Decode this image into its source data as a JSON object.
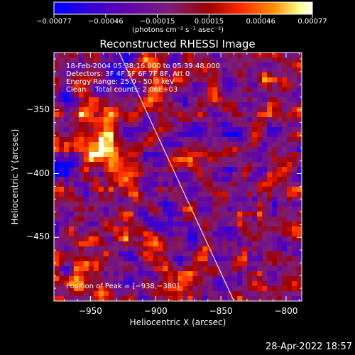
{
  "chart_data": {
    "type": "heatmap",
    "title": "Reconstructed RHESSI Image",
    "xlabel": "Heliocentric X (arcsec)",
    "ylabel": "Heliocentric Y (arcsec)",
    "xlim": [
      -978,
      -788
    ],
    "ylim": [
      -500,
      -305
    ],
    "x_ticks": [
      -950,
      -900,
      -850,
      -800
    ],
    "y_ticks": [
      -450,
      -400,
      -350
    ],
    "x_tick_labels": [
      "−950",
      "−900",
      "−850",
      "−800"
    ],
    "y_tick_labels": [
      "−450",
      "−400",
      "−350"
    ],
    "colorbar": {
      "range": [
        -0.00077,
        0.00077
      ],
      "tick_labels": [
        "−0.00077",
        "−0.00046",
        "−0.00015",
        "0.00015",
        "0.00046",
        "0.00077"
      ],
      "unit_label": "(photons cm⁻² s⁻¹ asec⁻²)"
    },
    "limb_line": [
      [
        -928,
        -305
      ],
      [
        -840,
        -500
      ]
    ],
    "peak": {
      "x": -938,
      "y": -380
    },
    "hot_spots": [
      {
        "x": -938,
        "y": -380,
        "w": 1.0
      },
      {
        "x": -942,
        "y": -352,
        "w": 0.55
      },
      {
        "x": -920,
        "y": -398,
        "w": 0.45
      },
      {
        "x": -960,
        "y": -365,
        "w": 0.4
      },
      {
        "x": -905,
        "y": -322,
        "w": 0.35
      },
      {
        "x": -895,
        "y": -350,
        "w": 0.35
      },
      {
        "x": -972,
        "y": -455,
        "w": 0.45
      },
      {
        "x": -935,
        "y": -440,
        "w": 0.3
      },
      {
        "x": -900,
        "y": -460,
        "w": 0.3
      },
      {
        "x": -890,
        "y": -420,
        "w": 0.3
      },
      {
        "x": -860,
        "y": -390,
        "w": 0.25
      },
      {
        "x": -820,
        "y": -400,
        "w": 0.3
      },
      {
        "x": -835,
        "y": -470,
        "w": 0.3
      },
      {
        "x": -810,
        "y": -330,
        "w": 0.25
      },
      {
        "x": -950,
        "y": -485,
        "w": 0.3
      },
      {
        "x": -875,
        "y": -480,
        "w": 0.25
      }
    ],
    "annotations": [
      "18-Feb-2004 05:38:16.000 to 05:39:48.000",
      "Detectors: 3F 4F 5F 6F 7F 8F, Att 0",
      "Energy Range: 25.0 - 50.0 keV",
      "Clean    Total counts: 2.06E+03"
    ],
    "peak_label": "Position of Peak = [−938,−380]"
  },
  "footer": {
    "timestamp": "28-Apr-2022 18:57"
  },
  "colors": {
    "background": "#000000",
    "colormap": [
      "#0000ff",
      "#5a00b4",
      "#7d1e78",
      "#a00000",
      "#ff2800",
      "#ff8c00",
      "#ffff8c",
      "#ffffff"
    ]
  }
}
